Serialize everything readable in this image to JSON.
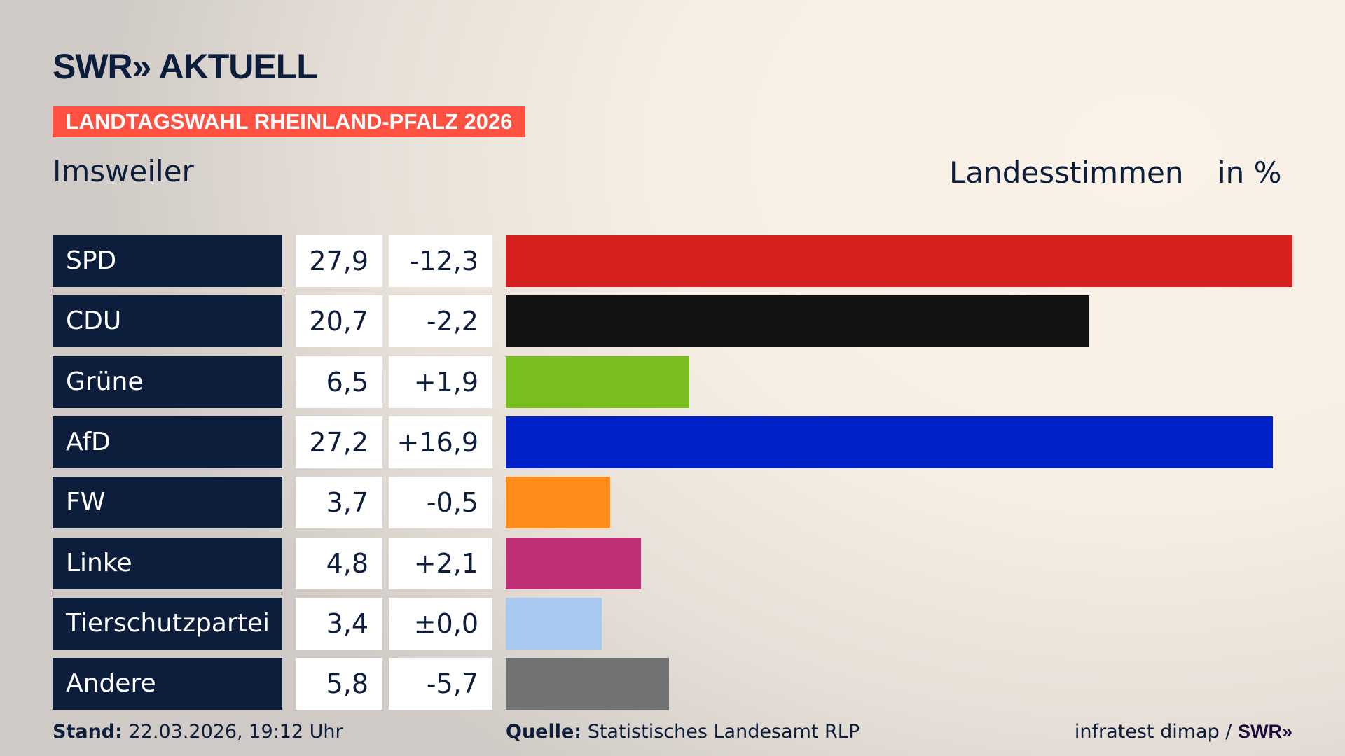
{
  "header": {
    "logo": "SWR» AKTUELL",
    "banner": "LANDTAGSWAHL RHEINLAND-PFALZ 2026",
    "location": "Imsweiler",
    "measure": "Landesstimmen",
    "unit": "in %"
  },
  "colors": {
    "banner": "#ff5141",
    "label_bg": "#0c1e3c"
  },
  "chart_data": {
    "type": "bar",
    "orientation": "horizontal",
    "categories": [
      "SPD",
      "CDU",
      "Grüne",
      "AfD",
      "FW",
      "Linke",
      "Tierschutzpartei",
      "Andere"
    ],
    "values": [
      27.9,
      20.7,
      6.5,
      27.2,
      3.7,
      4.8,
      3.4,
      5.8
    ],
    "value_labels": [
      "27,9",
      "20,7",
      "6,5",
      "27,2",
      "3,7",
      "4,8",
      "3,4",
      "5,8"
    ],
    "change_labels": [
      "-12,3",
      "-2,2",
      "+1,9",
      "+16,9",
      "-0,5",
      "+2,1",
      "±0,0",
      "-5,7"
    ],
    "colors": [
      "#d7201f",
      "#121212",
      "#78be1e",
      "#0020c8",
      "#ff8c1a",
      "#bd3075",
      "#a9c9f0",
      "#717273"
    ]
  },
  "footer": {
    "stand_label": "Stand:",
    "stand_value": "22.03.2026, 19:12 Uhr",
    "source_label": "Quelle:",
    "source_value": "Statistisches Landesamt RLP",
    "credit": "infratest dimap / ",
    "credit_logo": "SWR»"
  }
}
